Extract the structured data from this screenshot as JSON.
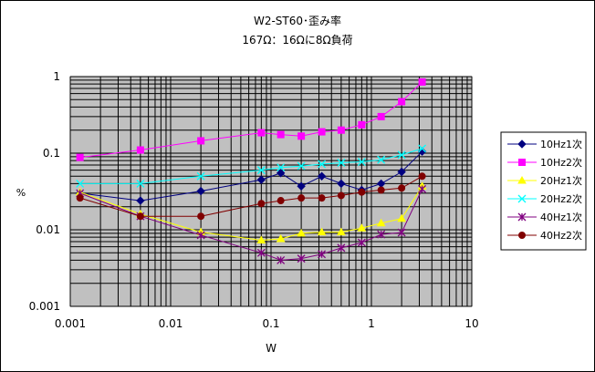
{
  "chart_data": {
    "type": "line",
    "title": "W2-ST60･歪み率",
    "subtitle": "167Ω：16Ωに8Ω負荷",
    "xlabel": "W",
    "ylabel": "%",
    "x_scale": "log",
    "y_scale": "log",
    "xlim": [
      0.001,
      10
    ],
    "ylim": [
      0.001,
      1
    ],
    "x_ticks": [
      "0.001",
      "0.01",
      "0.1",
      "1",
      "10"
    ],
    "y_ticks": [
      "0.001",
      "0.01",
      "0.1",
      "1"
    ],
    "grid": true,
    "plot_background": "#c0c0c0",
    "legend_position": "right",
    "x": [
      0.00125,
      0.005,
      0.02,
      0.08,
      0.125,
      0.2,
      0.32,
      0.5,
      0.8,
      1.25,
      2,
      3.2
    ],
    "series": [
      {
        "name": "10Hz1次",
        "color": "#000080",
        "marker": "diamond",
        "values": [
          0.03,
          0.024,
          0.032,
          0.045,
          0.055,
          0.037,
          0.05,
          0.04,
          0.033,
          0.04,
          0.057,
          0.105
        ]
      },
      {
        "name": "10Hz2次",
        "color": "#ff00ff",
        "marker": "square",
        "values": [
          0.088,
          0.11,
          0.145,
          0.185,
          0.175,
          0.167,
          0.19,
          0.2,
          0.235,
          0.3,
          0.47,
          0.85
        ]
      },
      {
        "name": "20Hz1次",
        "color": "#ffff00",
        "marker": "triangle",
        "values": [
          0.031,
          0.016,
          0.0093,
          0.0073,
          0.0076,
          0.009,
          0.0093,
          0.0093,
          0.0105,
          0.0122,
          0.014,
          0.037
        ]
      },
      {
        "name": "20Hz2次",
        "color": "#00ffff",
        "marker": "x",
        "values": [
          0.04,
          0.04,
          0.05,
          0.06,
          0.065,
          0.068,
          0.072,
          0.075,
          0.077,
          0.082,
          0.095,
          0.115
        ]
      },
      {
        "name": "40Hz1次",
        "color": "#800080",
        "marker": "star",
        "values": [
          0.03,
          0.015,
          0.0085,
          0.005,
          0.004,
          0.0042,
          0.0048,
          0.0058,
          0.0068,
          0.0087,
          0.0092,
          0.034
        ]
      },
      {
        "name": "40Hz2次",
        "color": "#800000",
        "marker": "circle",
        "values": [
          0.026,
          0.015,
          0.015,
          0.022,
          0.024,
          0.026,
          0.026,
          0.028,
          0.031,
          0.033,
          0.035,
          0.05
        ]
      }
    ]
  }
}
